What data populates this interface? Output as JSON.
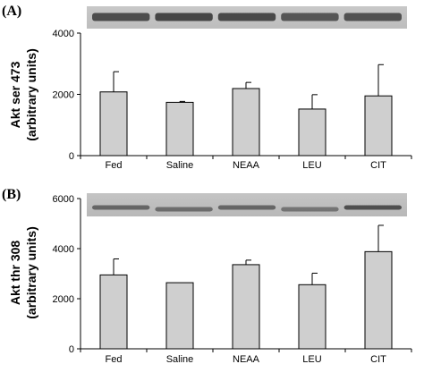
{
  "chart_data": [
    {
      "type": "bar",
      "panel_label": "(A)",
      "ylabel": "Akt ser 473",
      "ylabel_sub": "(arbitrary units)",
      "categories": [
        "Fed",
        "Saline",
        "NEAA",
        "LEU",
        "CIT"
      ],
      "values": [
        2080,
        1740,
        2190,
        1520,
        1950
      ],
      "errors": [
        660,
        30,
        200,
        470,
        1020
      ],
      "ylim": [
        0,
        4000
      ],
      "yticks": [
        "0",
        "2000",
        "4000"
      ],
      "ytick_values": [
        0,
        2000,
        4000
      ],
      "bar_color": "#cfcfcf",
      "blot": "ser473"
    },
    {
      "type": "bar",
      "panel_label": "(B)",
      "ylabel": "Akt thr 308",
      "ylabel_sub": "(arbitrary units)",
      "categories": [
        "Fed",
        "Saline",
        "NEAA",
        "LEU",
        "CIT"
      ],
      "values": [
        2950,
        2640,
        3360,
        2560,
        3880
      ],
      "errors": [
        640,
        0,
        180,
        460,
        1050
      ],
      "ylim": [
        0,
        6000
      ],
      "yticks": [
        "0",
        "2000",
        "4000",
        "6000"
      ],
      "ytick_values": [
        0,
        2000,
        4000,
        6000
      ],
      "bar_color": "#cfcfcf",
      "blot": "thr308"
    }
  ]
}
